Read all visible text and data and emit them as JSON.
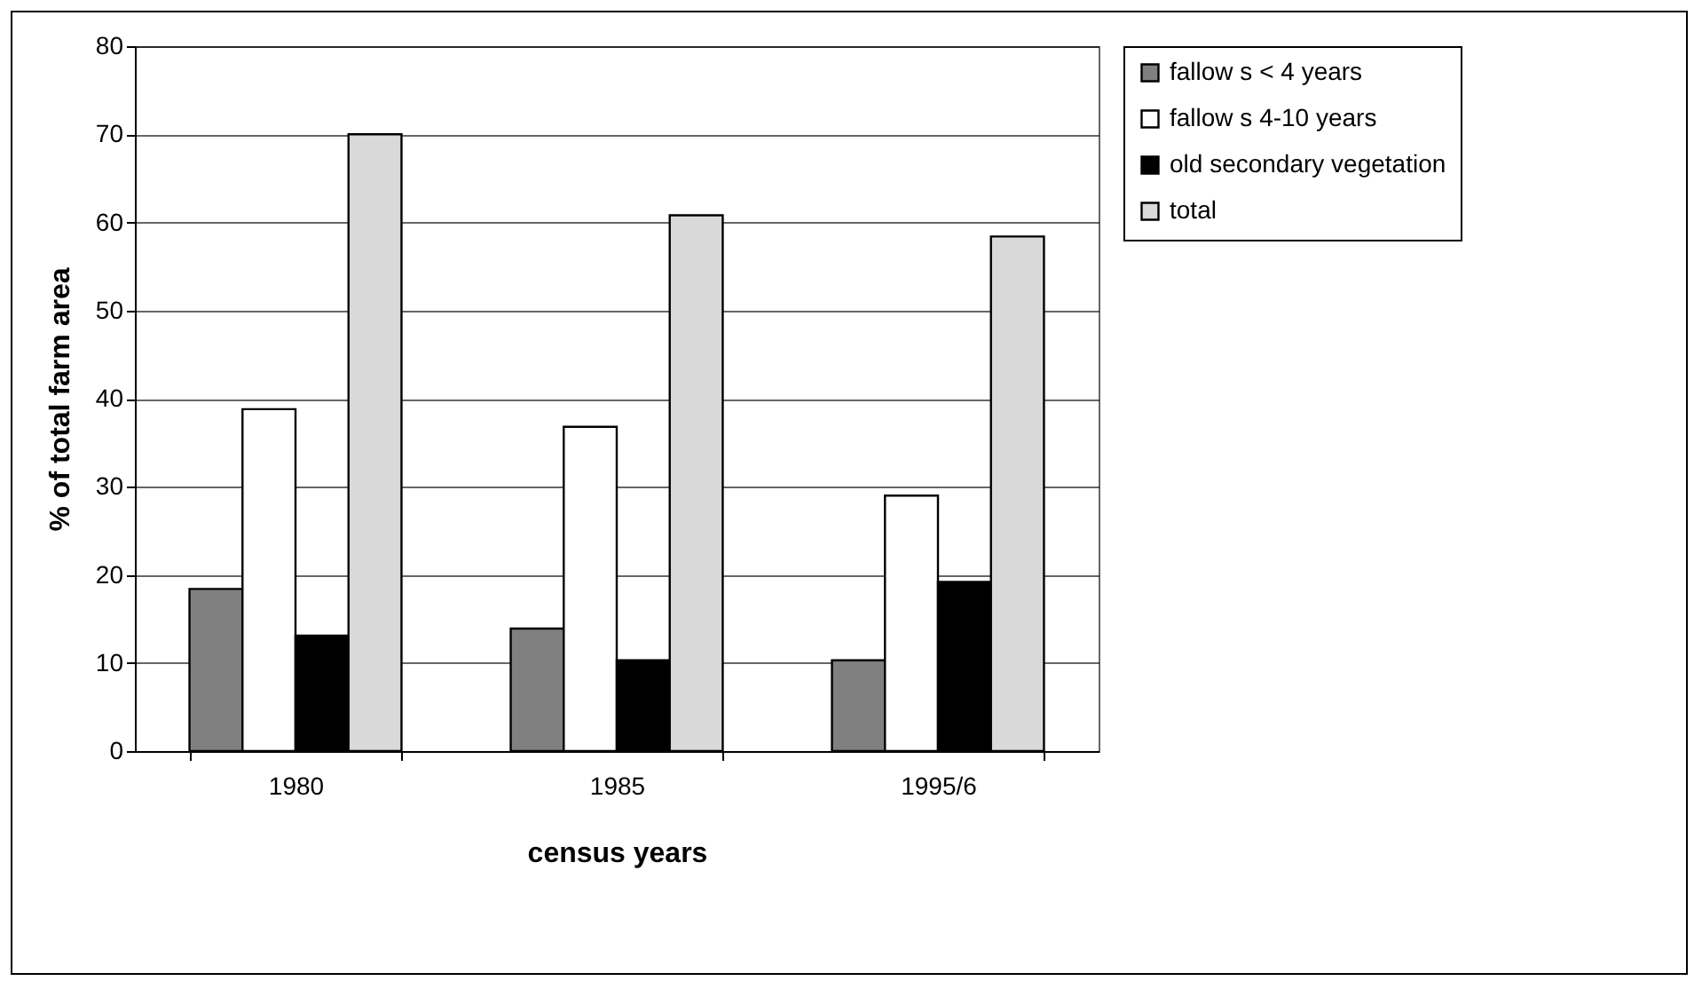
{
  "chart_data": {
    "type": "bar",
    "xlabel": "census years",
    "ylabel": "% of total farm area",
    "categories": [
      "1980",
      "1985",
      "1995/6"
    ],
    "series": [
      {
        "name": "fallow s < 4 years",
        "color": "#808080",
        "values": [
          18.4,
          13.9,
          10.3
        ]
      },
      {
        "name": "fallow s 4-10 years",
        "color": "#ffffff",
        "values": [
          38.8,
          36.8,
          29.0
        ]
      },
      {
        "name": "old secondary vegetation",
        "color": "#000000",
        "values": [
          13.1,
          10.3,
          19.2
        ]
      },
      {
        "name": "total",
        "color": "#d9d9d9",
        "values": [
          70,
          60.8,
          58.4
        ]
      }
    ],
    "ylim": [
      0,
      80
    ],
    "yticks": [
      0,
      10,
      20,
      30,
      40,
      50,
      60,
      70,
      80
    ],
    "grid": "y",
    "legend": "right"
  }
}
